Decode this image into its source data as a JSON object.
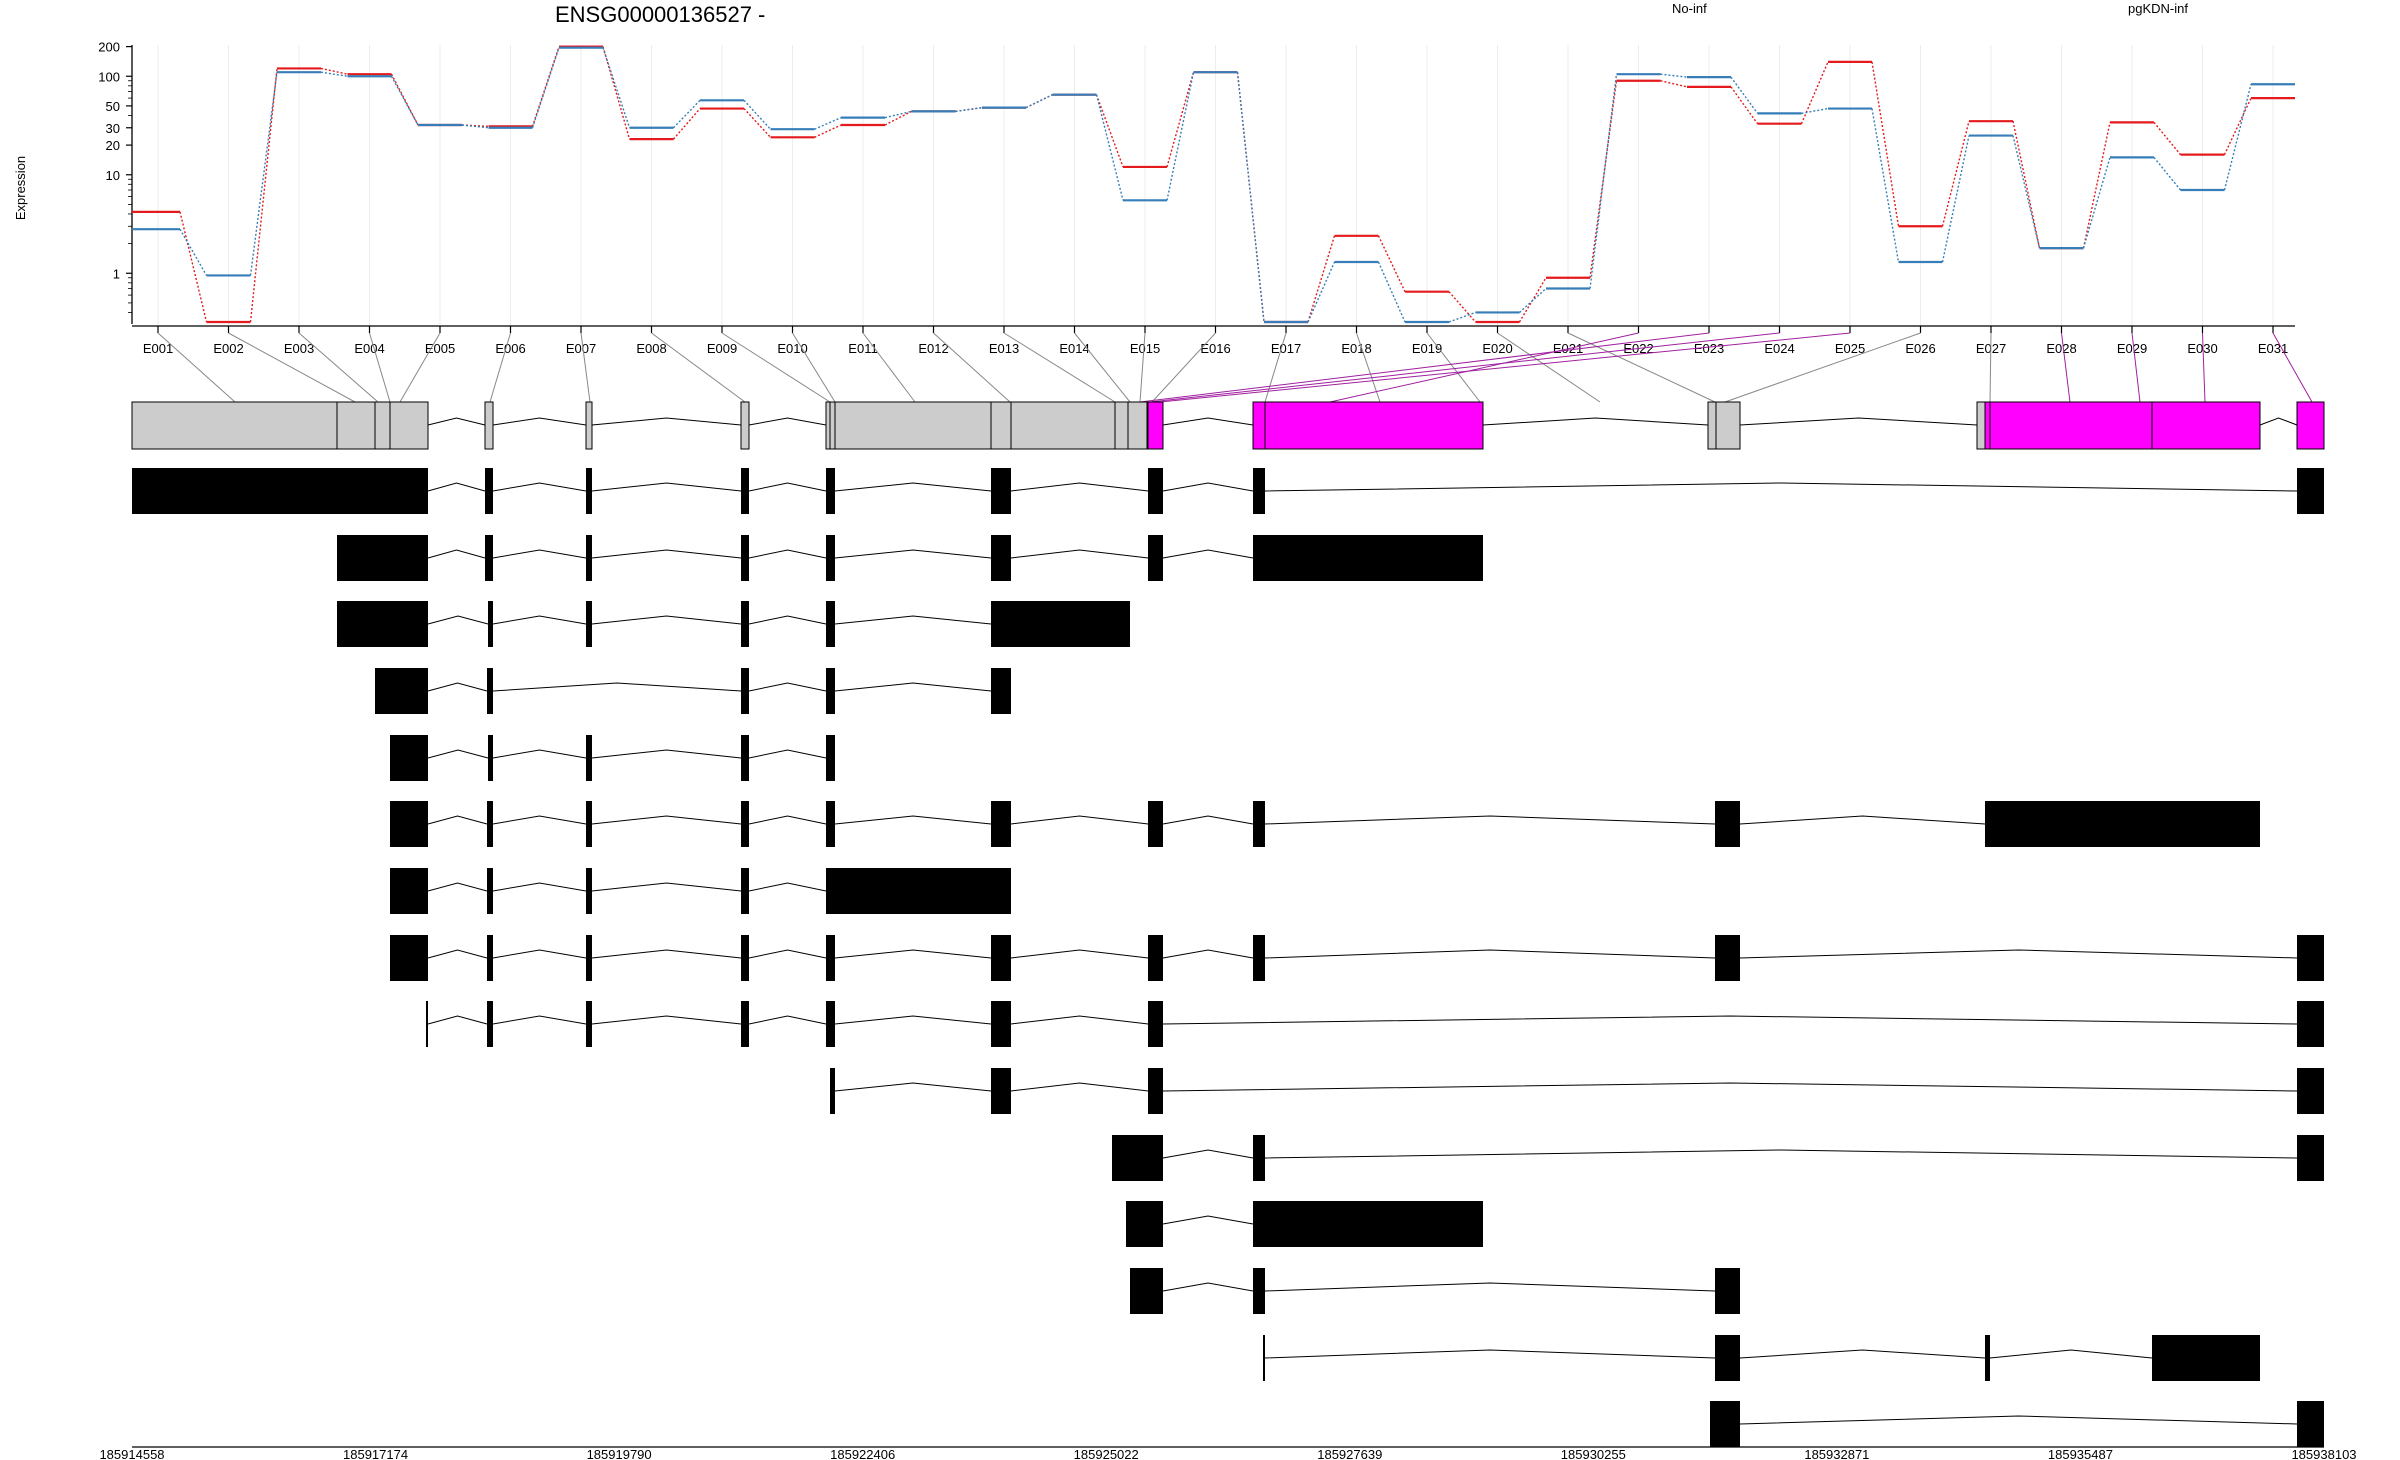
{
  "chart_data": {
    "type": "line",
    "title": "ENSG00000136527 -",
    "ylabel": "Expression",
    "y_scale": "log",
    "y_ticks": [
      1,
      10,
      20,
      30,
      50,
      100,
      200
    ],
    "ylim": [
      0.3,
      260
    ],
    "categories": [
      "E001",
      "E002",
      "E003",
      "E004",
      "E005",
      "E006",
      "E007",
      "E008",
      "E009",
      "E010",
      "E011",
      "E012",
      "E013",
      "E014",
      "E015",
      "E016",
      "E017",
      "E018",
      "E019",
      "E020",
      "E021",
      "E022",
      "E023",
      "E024",
      "E025",
      "E026",
      "E027",
      "E028",
      "E029",
      "E030",
      "E031"
    ],
    "series": [
      {
        "name": "No-inf",
        "color": "#e41a1c",
        "values": [
          4.2,
          0.3,
          120,
          105,
          32,
          31,
          200,
          23,
          47,
          24,
          32,
          44,
          48,
          65,
          12,
          110,
          0.3,
          2.4,
          0.65,
          0.3,
          0.9,
          90,
          78,
          33,
          140,
          3.0,
          35,
          1.8,
          34,
          16,
          60
        ]
      },
      {
        "name": "pgKDN-inf",
        "color": "#377eb8",
        "values": [
          2.8,
          0.95,
          110,
          100,
          32,
          30,
          195,
          30,
          57,
          29,
          38,
          44,
          48,
          65,
          5.5,
          110,
          0.3,
          1.3,
          0.3,
          0.4,
          0.7,
          105,
          98,
          42,
          47,
          1.3,
          25,
          1.8,
          15,
          7,
          83
        ]
      }
    ],
    "grid": true,
    "legend_position": "top",
    "genomic_coordinates": [
      "185914558",
      "185917174",
      "185919790",
      "185922406",
      "185925022",
      "185927639",
      "185930255",
      "185932871",
      "185935487",
      "185938103"
    ],
    "exon_colors": {
      "normal": "#cccccc",
      "highlight": "#ff00ff",
      "transcript": "#000000"
    }
  }
}
